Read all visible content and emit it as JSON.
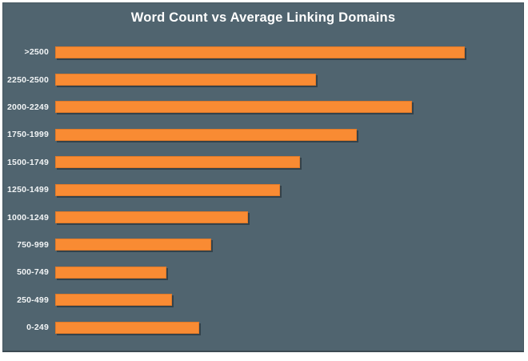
{
  "title": "Word Count vs Average Linking Domains",
  "colors": {
    "page_background": "#ffffff",
    "panel_background": "#50646f",
    "panel_border": "#475861",
    "bar_fill": "#f98b33",
    "bar_border": "#e07a29",
    "title_text": "#ffffff",
    "label_text": "#f2f5f6"
  },
  "chart_data": {
    "type": "bar",
    "orientation": "horizontal",
    "title": "Word Count vs Average Linking Domains",
    "xlabel": "",
    "ylabel": "",
    "grid": false,
    "legend": "none",
    "value_axis_labeled": false,
    "value_unit": "percent of longest bar (no numeric axis shown in image)",
    "categories": [
      ">2500",
      "2250-2500",
      "2000-2249",
      "1750-1999",
      "1500-1749",
      "1250-1499",
      "1000-1249",
      "750-999",
      "500-749",
      "250-499",
      "0-249"
    ],
    "values_pct_of_max": [
      100,
      63.7,
      87.0,
      73.6,
      59.8,
      54.9,
      47.0,
      38.0,
      27.2,
      28.5,
      35.2
    ]
  }
}
